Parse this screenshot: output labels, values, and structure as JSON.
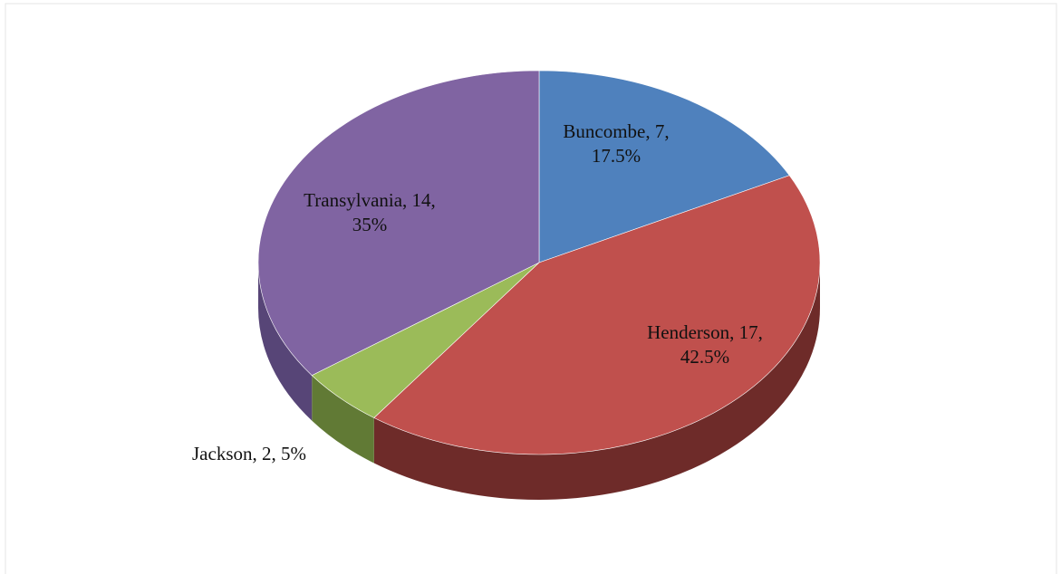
{
  "chart_data": {
    "type": "pie",
    "values": [
      7,
      17,
      2,
      14
    ],
    "value_labels": [
      [
        "Buncombe, 7,",
        "17.5%"
      ],
      [
        "Henderson, 17,",
        "42.5%"
      ],
      [
        "Jackson, 2, 5%"
      ],
      [
        "Transylvania, 14,",
        "35%"
      ]
    ],
    "colors": [
      "#4f81bd",
      "#c0504d",
      "#9bbb59",
      "#8064a2"
    ],
    "side_colors": [
      "#3a6191",
      "#6e2b29",
      "#617a35",
      "#574577"
    ]
  }
}
